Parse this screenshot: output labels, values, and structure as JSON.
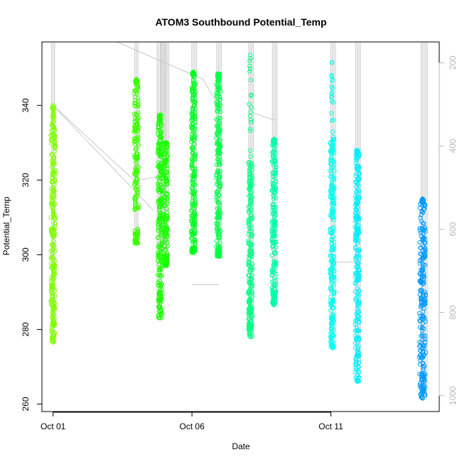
{
  "chart_data": {
    "type": "scatter",
    "title": "ATOM3 Southbound Potential_Temp",
    "xlabel": "Date",
    "ylabel": "Potential_Temp",
    "x_ticks": [
      "Oct 01",
      "Oct 06",
      "Oct 11"
    ],
    "y_ticks": [
      260,
      280,
      300,
      320,
      340
    ],
    "y_range": [
      258,
      357
    ],
    "x_range_days": [
      0.6,
      14.9
    ],
    "secondary_axis": {
      "side": "right",
      "ticks": [
        200,
        400,
        600,
        800,
        1000
      ],
      "range": [
        1038,
        150
      ],
      "color": "#b8b8b8",
      "note": "reversed depth axis; gray profile traces"
    },
    "grid": false,
    "series": [
      {
        "day": 1.0,
        "color": "#80ff00",
        "min": 276.5,
        "max": 340,
        "lower_cluster": [
          276.5,
          285
        ],
        "dense": [
          285,
          336
        ]
      },
      {
        "day": 4.0,
        "color": "#3cff00",
        "min": 303,
        "max": 347,
        "lower_cluster": [
          303,
          307
        ],
        "dense": [
          312,
          346
        ]
      },
      {
        "day": 4.85,
        "color": "#1aff00",
        "min": 283,
        "max": 337.5,
        "lower_cluster": [
          283,
          290
        ],
        "dense": [
          290,
          336
        ]
      },
      {
        "day": 5.05,
        "color": "#1aff00",
        "min": 297,
        "max": 330,
        "lower_cluster": [
          297,
          300
        ],
        "dense": [
          300,
          330
        ]
      },
      {
        "day": 6.05,
        "color": "#00ff20",
        "min": 300.5,
        "max": 349,
        "lower_cluster": [
          300.5,
          302
        ],
        "dense": [
          302,
          348
        ]
      },
      {
        "day": 6.95,
        "color": "#00ff4a",
        "min": 299.5,
        "max": 348.5,
        "lower_cluster": [
          299.5,
          302
        ],
        "dense": [
          302,
          347
        ]
      },
      {
        "day": 8.1,
        "color": "#00ff86",
        "min": 278,
        "max": 353.5,
        "lower_cluster": [
          278,
          283
        ],
        "dense": [
          283,
          325
        ]
      },
      {
        "day": 8.95,
        "color": "#00ffaa",
        "min": 286.5,
        "max": 331,
        "lower_cluster": [
          286.5,
          290
        ],
        "dense": [
          290,
          330
        ]
      },
      {
        "day": 11.05,
        "color": "#00ffee",
        "min": 275,
        "max": 351.5,
        "lower_cluster": [
          275,
          282
        ],
        "dense": [
          282,
          331
        ]
      },
      {
        "day": 11.95,
        "color": "#00eeff",
        "min": 266,
        "max": 328,
        "lower_cluster": [
          266,
          275
        ],
        "dense": [
          275,
          327
        ]
      },
      {
        "day": 14.3,
        "color": "#009aff",
        "min": 261.5,
        "max": 315,
        "lower_cluster": [
          261.5,
          268
        ],
        "dense": [
          268,
          314
        ]
      }
    ]
  }
}
